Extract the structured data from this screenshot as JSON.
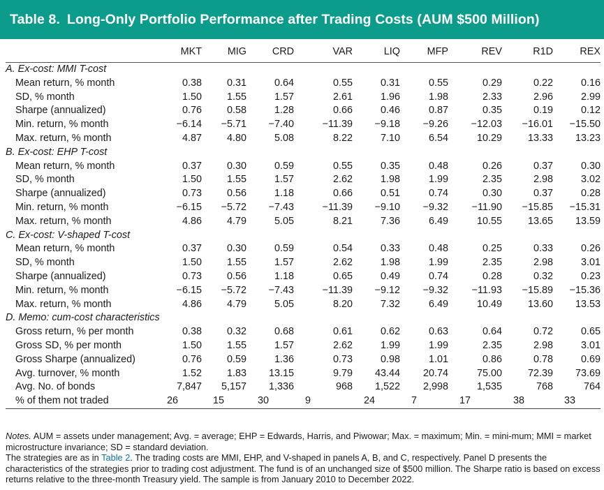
{
  "header": {
    "table_label": "Table 8.",
    "title": "Long-Only Portfolio Performance after Trading Costs (AUM $500 Million)",
    "background_color": "#0c9c8c"
  },
  "columns": [
    "MKT",
    "MIG",
    "CRD",
    "VAR",
    "LIQ",
    "MFP",
    "REV",
    "R1D",
    "REX"
  ],
  "panels": [
    {
      "title": "A. Ex-cost: MMI T-cost",
      "rows": [
        {
          "label": "Mean return, % month",
          "values": [
            "0.38",
            "0.31",
            "0.64",
            "0.55",
            "0.31",
            "0.55",
            "0.29",
            "0.22",
            "0.16"
          ]
        },
        {
          "label": "SD, % month",
          "values": [
            "1.50",
            "1.55",
            "1.57",
            "2.61",
            "1.96",
            "1.98",
            "2.33",
            "2.96",
            "2.99"
          ]
        },
        {
          "label": "Sharpe (annualized)",
          "values": [
            "0.76",
            "0.58",
            "1.28",
            "0.66",
            "0.46",
            "0.87",
            "0.35",
            "0.19",
            "0.12"
          ]
        },
        {
          "label": "Min. return, % month",
          "values": [
            "−6.14",
            "−5.71",
            "−7.40",
            "−11.39",
            "−9.18",
            "−9.26",
            "−12.03",
            "−16.01",
            "−15.50"
          ]
        },
        {
          "label": "Max. return, % month",
          "values": [
            "4.87",
            "4.80",
            "5.08",
            "8.22",
            "7.10",
            "6.54",
            "10.29",
            "13.33",
            "13.23"
          ]
        }
      ]
    },
    {
      "title": "B. Ex-cost: EHP T-cost",
      "rows": [
        {
          "label": "Mean return, % month",
          "values": [
            "0.37",
            "0.30",
            "0.59",
            "0.55",
            "0.35",
            "0.48",
            "0.26",
            "0.37",
            "0.30"
          ]
        },
        {
          "label": "SD, % month",
          "values": [
            "1.50",
            "1.55",
            "1.57",
            "2.62",
            "1.98",
            "1.99",
            "2.35",
            "2.98",
            "3.02"
          ]
        },
        {
          "label": "Sharpe (annualized)",
          "values": [
            "0.73",
            "0.56",
            "1.18",
            "0.66",
            "0.51",
            "0.74",
            "0.30",
            "0.37",
            "0.28"
          ]
        },
        {
          "label": "Min. return, % month",
          "values": [
            "−6.15",
            "−5.72",
            "−7.43",
            "−11.39",
            "−9.10",
            "−9.32",
            "−11.90",
            "−15.85",
            "−15.31"
          ]
        },
        {
          "label": "Max. return, % month",
          "values": [
            "4.86",
            "4.79",
            "5.05",
            "8.21",
            "7.36",
            "6.49",
            "10.55",
            "13.65",
            "13.59"
          ]
        }
      ]
    },
    {
      "title": "C. Ex-cost: V-shaped T-cost",
      "rows": [
        {
          "label": "Mean return, % month",
          "values": [
            "0.37",
            "0.30",
            "0.59",
            "0.54",
            "0.33",
            "0.48",
            "0.25",
            "0.33",
            "0.26"
          ]
        },
        {
          "label": "SD, % month",
          "values": [
            "1.50",
            "1.55",
            "1.57",
            "2.62",
            "1.98",
            "1.99",
            "2.35",
            "2.98",
            "3.01"
          ]
        },
        {
          "label": "Sharpe (annualized)",
          "values": [
            "0.73",
            "0.56",
            "1.18",
            "0.65",
            "0.49",
            "0.74",
            "0.28",
            "0.32",
            "0.23"
          ]
        },
        {
          "label": "Min. return, % month",
          "values": [
            "−6.15",
            "−5.72",
            "−7.43",
            "−11.39",
            "−9.12",
            "−9.32",
            "−11.93",
            "−15.89",
            "−15.36"
          ]
        },
        {
          "label": "Max. return, % month",
          "values": [
            "4.86",
            "4.79",
            "5.05",
            "8.20",
            "7.32",
            "6.49",
            "10.49",
            "13.60",
            "13.53"
          ]
        }
      ]
    },
    {
      "title": "D. Memo: cum-cost characteristics",
      "rows": [
        {
          "label": "Gross return, % per month",
          "values": [
            "0.38",
            "0.32",
            "0.68",
            "0.61",
            "0.62",
            "0.63",
            "0.64",
            "0.72",
            "0.65"
          ]
        },
        {
          "label": "Gross SD, % per month",
          "values": [
            "1.50",
            "1.55",
            "1.57",
            "2.62",
            "1.99",
            "1.99",
            "2.35",
            "2.98",
            "3.01"
          ]
        },
        {
          "label": "Gross Sharpe (annualized)",
          "values": [
            "0.76",
            "0.59",
            "1.36",
            "0.73",
            "0.98",
            "1.01",
            "0.86",
            "0.78",
            "0.69"
          ]
        },
        {
          "label": "Avg. turnover, % month",
          "values": [
            "1.52",
            "1.83",
            "13.15",
            "9.79",
            "43.44",
            "20.74",
            "75.00",
            "72.39",
            "73.69"
          ]
        },
        {
          "label": "Avg. No. of bonds",
          "values": [
            "7,847",
            "5,157",
            "1,336",
            "968",
            "1,522",
            "2,998",
            "1,535",
            "768",
            "764"
          ]
        },
        {
          "label": "% of them not traded",
          "values": [
            "26",
            "15",
            "30",
            "9",
            "24",
            "7",
            "17",
            "38",
            "33"
          ],
          "align": "left"
        }
      ]
    }
  ],
  "notes": {
    "label": "Notes.",
    "line1": "AUM = assets under management; Avg. = average; EHP = Edwards, Harris, and Piwowar; Max. = maximum; Min. = mini-mum; MMI = market microstructure invariance; SD = standard deviation.",
    "line2_pre": "The strategies are as in ",
    "line2_link": "Table 2",
    "line2_post": ". The trading costs are MMI, EHP, and V-shaped in panels A, B, and C, respectively. Panel D presents the characteristics of the strategies prior to trading cost adjustment. The fund is of an unchanged size of $500 million. The Sharpe ratio is based on excess returns relative to the three-month Treasury yield. The sample is from January 2010 to December 2022.",
    "link_color": "#0e6fa8"
  }
}
